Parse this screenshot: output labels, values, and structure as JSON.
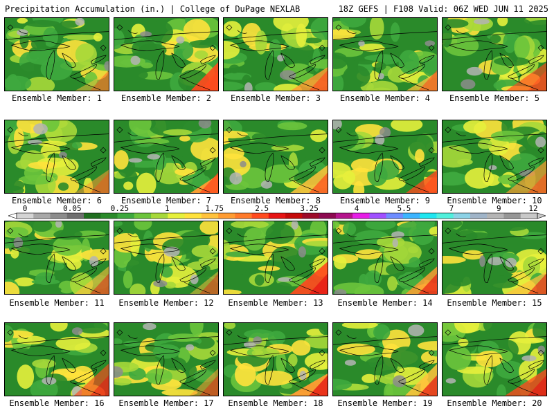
{
  "header": {
    "title_left": "Precipitation Accumulation (in.) | College of DuPage NEXLAB",
    "title_right": "18Z GEFS | F108 Valid: 06Z WED JUN 11 2025"
  },
  "colorbar": {
    "tick_labels": [
      "0",
      "0.05",
      "0.25",
      "1",
      "1.75",
      "2.5",
      "3.25",
      "4",
      "5.5",
      "7",
      "9",
      "12"
    ],
    "colors": [
      "#d4d4d4",
      "#a8a8a8",
      "#8c8c8c",
      "#6e6e6e",
      "#1f6e1f",
      "#2a8a2a",
      "#3ea83e",
      "#6cc43c",
      "#a6d83a",
      "#e6f03c",
      "#ffe23c",
      "#ffc23c",
      "#ff9c32",
      "#ff7a2a",
      "#ff4a1e",
      "#e61414",
      "#c40a0a",
      "#9c0a28",
      "#8c0a50",
      "#b4148c",
      "#e61ee6",
      "#a050ff",
      "#6e8cff",
      "#3cb4ff",
      "#1ee6f0",
      "#50f0dc",
      "#8cd2e6",
      "#a0b4c8",
      "#b4b4b4",
      "#969696",
      "#c8c8c8"
    ]
  },
  "members": [
    {
      "label": "Ensemble Member: 1"
    },
    {
      "label": "Ensemble Member: 2"
    },
    {
      "label": "Ensemble Member: 3"
    },
    {
      "label": "Ensemble Member: 4"
    },
    {
      "label": "Ensemble Member: 5"
    },
    {
      "label": "Ensemble Member: 6"
    },
    {
      "label": "Ensemble Member: 7"
    },
    {
      "label": "Ensemble Member: 8"
    },
    {
      "label": "Ensemble Member: 9"
    },
    {
      "label": "Ensemble Member: 10"
    },
    {
      "label": "Ensemble Member: 11"
    },
    {
      "label": "Ensemble Member: 12"
    },
    {
      "label": "Ensemble Member: 13"
    },
    {
      "label": "Ensemble Member: 14"
    },
    {
      "label": "Ensemble Member: 15"
    },
    {
      "label": "Ensemble Member: 16"
    },
    {
      "label": "Ensemble Member: 17"
    },
    {
      "label": "Ensemble Member: 18"
    },
    {
      "label": "Ensemble Member: 19"
    },
    {
      "label": "Ensemble Member: 20"
    }
  ]
}
